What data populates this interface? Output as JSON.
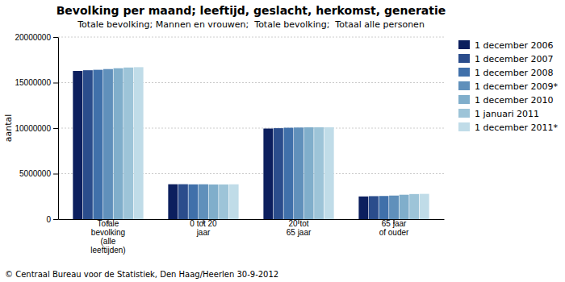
{
  "chart_data": {
    "type": "bar",
    "title": "Bevolking per maand; leeftijd, geslacht, herkomst, generatie",
    "subtitle": "Totale bevolking; Mannen en vrouwen;  Totale bevolking;  Totaal alle personen",
    "ylabel": "aantal",
    "footer": "© Centraal Bureau voor de Statistiek, Den Haag/Heerlen 30-9-2012",
    "categories": [
      "Totale\nbevolking\n(alle\nleeftijden)",
      "0 tot 20\njaar",
      "20 tot\n65 jaar",
      "65 jaar\nof ouder"
    ],
    "series": [
      {
        "name": "1 december 2006",
        "color": "#0c1f5e",
        "values": [
          16281000,
          3834000,
          9953000,
          2494000
        ]
      },
      {
        "name": "1 december 2007",
        "color": "#2b4d8c",
        "values": [
          16357000,
          3838000,
          9992000,
          2527000
        ]
      },
      {
        "name": "1 december 2008",
        "color": "#4070aa",
        "values": [
          16405000,
          3820000,
          10040000,
          2545000
        ]
      },
      {
        "name": "1 december 2009*",
        "color": "#6090bb",
        "values": [
          16486000,
          3830000,
          10065000,
          2591000
        ]
      },
      {
        "name": "1 december 2010",
        "color": "#80aecb",
        "values": [
          16575000,
          3808000,
          10085000,
          2682000
        ]
      },
      {
        "name": "1 januari 2011",
        "color": "#9dc4d8",
        "values": [
          16655000,
          3810000,
          10088000,
          2757000
        ]
      },
      {
        "name": "1 december 2011*",
        "color": "#c0dce8",
        "values": [
          16693000,
          3826000,
          10090000,
          2777000
        ]
      }
    ],
    "ylim": [
      0,
      20000000
    ],
    "yticks": [
      0,
      5000000,
      10000000,
      15000000,
      20000000
    ],
    "grid": true,
    "legend": "right"
  }
}
